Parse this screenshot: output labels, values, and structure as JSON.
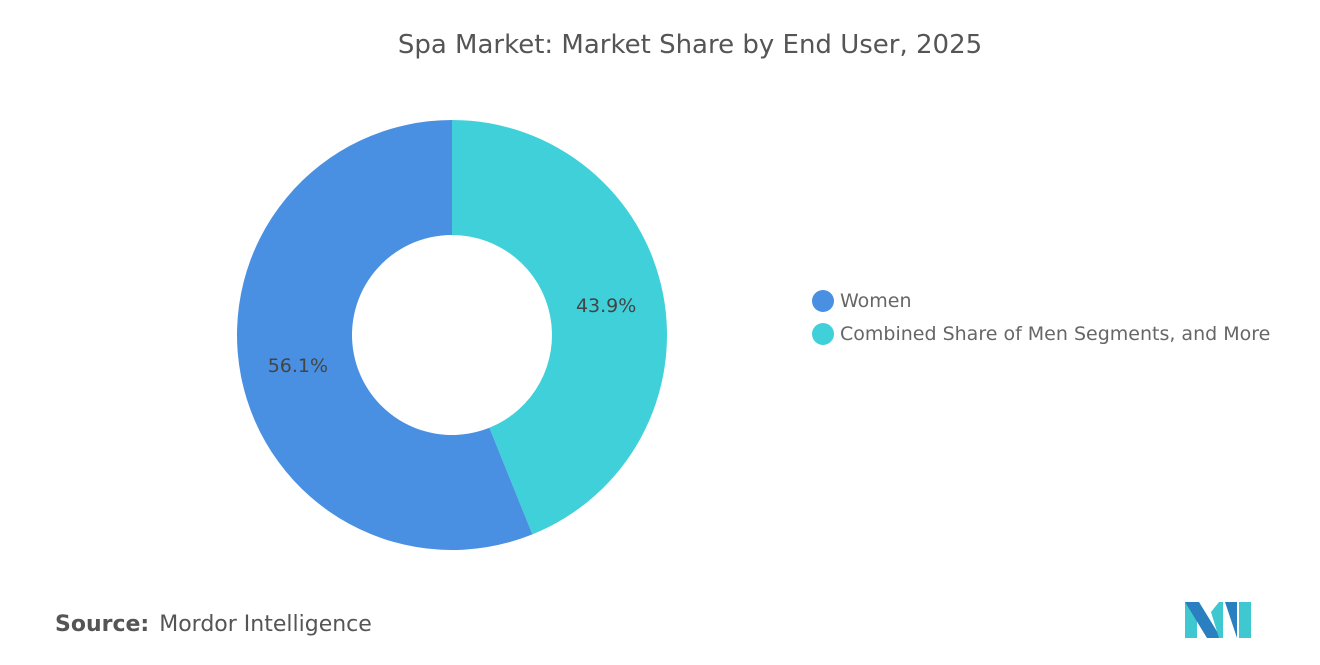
{
  "chart_data": {
    "type": "pie",
    "variant": "donut",
    "title": "Spa Market: Market Share by End User, 2025",
    "categories": [
      "Women",
      "Combined Share of Men Segments, and More"
    ],
    "values": [
      56.1,
      43.9
    ],
    "data_labels": [
      "56.1%",
      "43.9%"
    ],
    "colors": [
      "#4a90e2",
      "#40d0d9"
    ],
    "legend_position": "right"
  },
  "source": {
    "label": "Source:",
    "value": "Mordor Intelligence"
  },
  "logo": {
    "colors": [
      "#2a7fc0",
      "#40c8d0"
    ]
  }
}
